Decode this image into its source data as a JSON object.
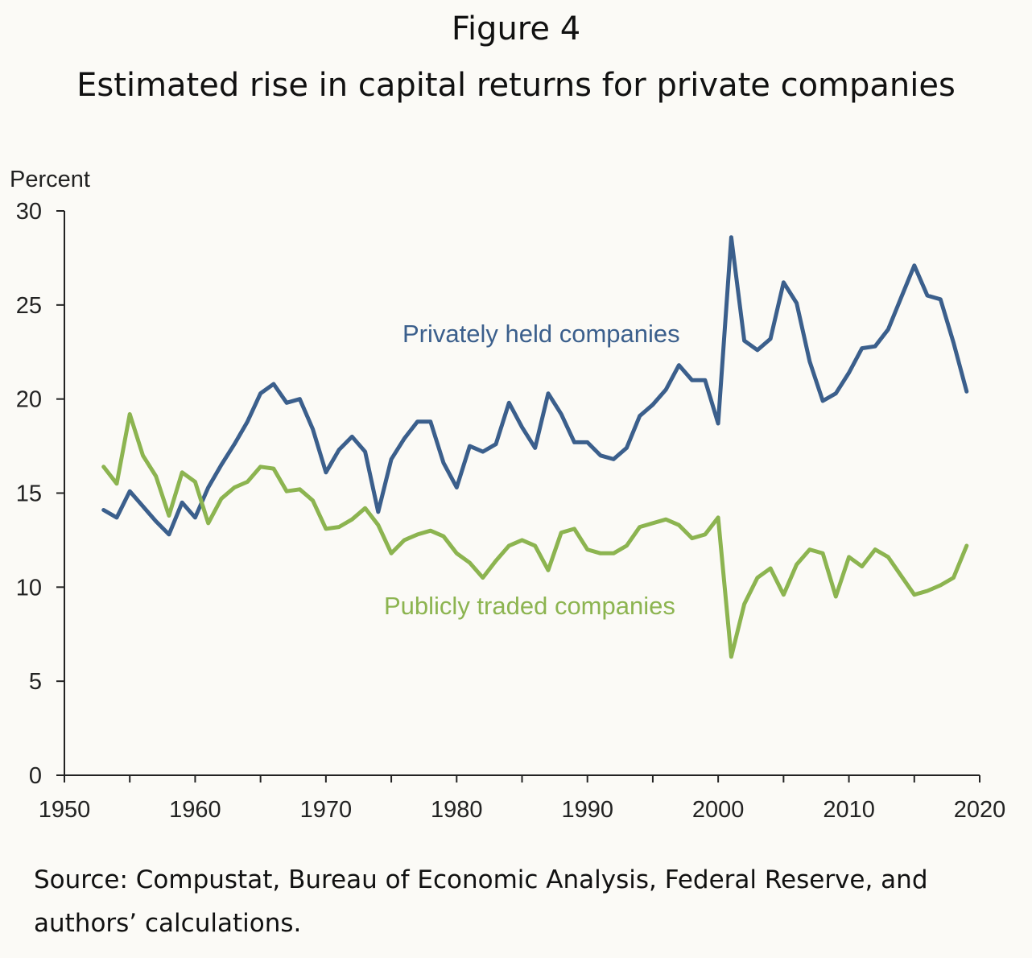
{
  "header": {
    "figure_label": "Figure 4",
    "title": "Estimated rise in capital returns for private companies"
  },
  "source_note": "Source: Compustat, Bureau of Economic Analysis, Federal Reserve, and authors’ calculations.",
  "colors": {
    "background": "#fbfaf6",
    "private_series": "#3b5f8c",
    "public_series": "#8cb450",
    "axis": "#222222"
  },
  "chart_data": {
    "type": "line",
    "title": "Estimated rise in capital returns for private companies",
    "xlabel": "",
    "ylabel": "Percent",
    "xlim": [
      1950,
      2020
    ],
    "ylim": [
      0,
      30
    ],
    "x_ticks": [
      1950,
      1960,
      1970,
      1980,
      1990,
      2000,
      2010,
      2020
    ],
    "y_ticks": [
      0,
      5,
      10,
      15,
      20,
      25,
      30
    ],
    "grid": false,
    "legend": "inline labels",
    "x": [
      1953,
      1954,
      1955,
      1956,
      1957,
      1958,
      1959,
      1960,
      1961,
      1962,
      1963,
      1964,
      1965,
      1966,
      1967,
      1968,
      1969,
      1970,
      1971,
      1972,
      1973,
      1974,
      1975,
      1976,
      1977,
      1978,
      1979,
      1980,
      1981,
      1982,
      1983,
      1984,
      1985,
      1986,
      1987,
      1988,
      1989,
      1990,
      1991,
      1992,
      1993,
      1994,
      1995,
      1996,
      1997,
      1998,
      1999,
      2000,
      2001,
      2002,
      2003,
      2004,
      2005,
      2006,
      2007,
      2008,
      2009,
      2010,
      2011,
      2012,
      2013,
      2014,
      2015,
      2016,
      2017,
      2018,
      2019
    ],
    "series": [
      {
        "name": "Privately held companies",
        "color": "#3b5f8c",
        "values": [
          14.1,
          13.7,
          15.1,
          14.3,
          13.5,
          12.8,
          14.5,
          13.7,
          15.3,
          16.5,
          17.6,
          18.8,
          20.3,
          20.8,
          19.8,
          20.0,
          18.4,
          16.1,
          17.3,
          18.0,
          17.2,
          14.0,
          16.8,
          17.9,
          18.8,
          18.8,
          16.6,
          15.3,
          17.5,
          17.2,
          17.6,
          19.8,
          18.5,
          17.4,
          20.3,
          19.2,
          17.7,
          17.7,
          17.0,
          16.8,
          17.4,
          19.1,
          19.7,
          20.5,
          21.8,
          21.0,
          21.0,
          18.7,
          28.6,
          23.1,
          22.6,
          23.2,
          26.2,
          25.1,
          22.0,
          19.9,
          20.3,
          21.4,
          22.7,
          22.8,
          23.7,
          25.4,
          27.1,
          25.5,
          25.3,
          23.0,
          20.4
        ]
      },
      {
        "name": "Publicly traded companies",
        "color": "#8cb450",
        "values": [
          16.4,
          15.5,
          19.2,
          17.0,
          15.9,
          13.8,
          16.1,
          15.6,
          13.4,
          14.7,
          15.3,
          15.6,
          16.4,
          16.3,
          15.1,
          15.2,
          14.6,
          13.1,
          13.2,
          13.6,
          14.2,
          13.3,
          11.8,
          12.5,
          12.8,
          13.0,
          12.7,
          11.8,
          11.3,
          10.5,
          11.4,
          12.2,
          12.5,
          12.2,
          10.9,
          12.9,
          13.1,
          12.0,
          11.8,
          11.8,
          12.2,
          13.2,
          13.4,
          13.6,
          13.3,
          12.6,
          12.8,
          13.7,
          6.3,
          9.1,
          10.5,
          11.0,
          9.6,
          11.2,
          12.0,
          11.8,
          9.5,
          11.6,
          11.1,
          12.0,
          11.6,
          10.6,
          9.6,
          9.8,
          10.1,
          10.5,
          12.2
        ]
      }
    ]
  }
}
